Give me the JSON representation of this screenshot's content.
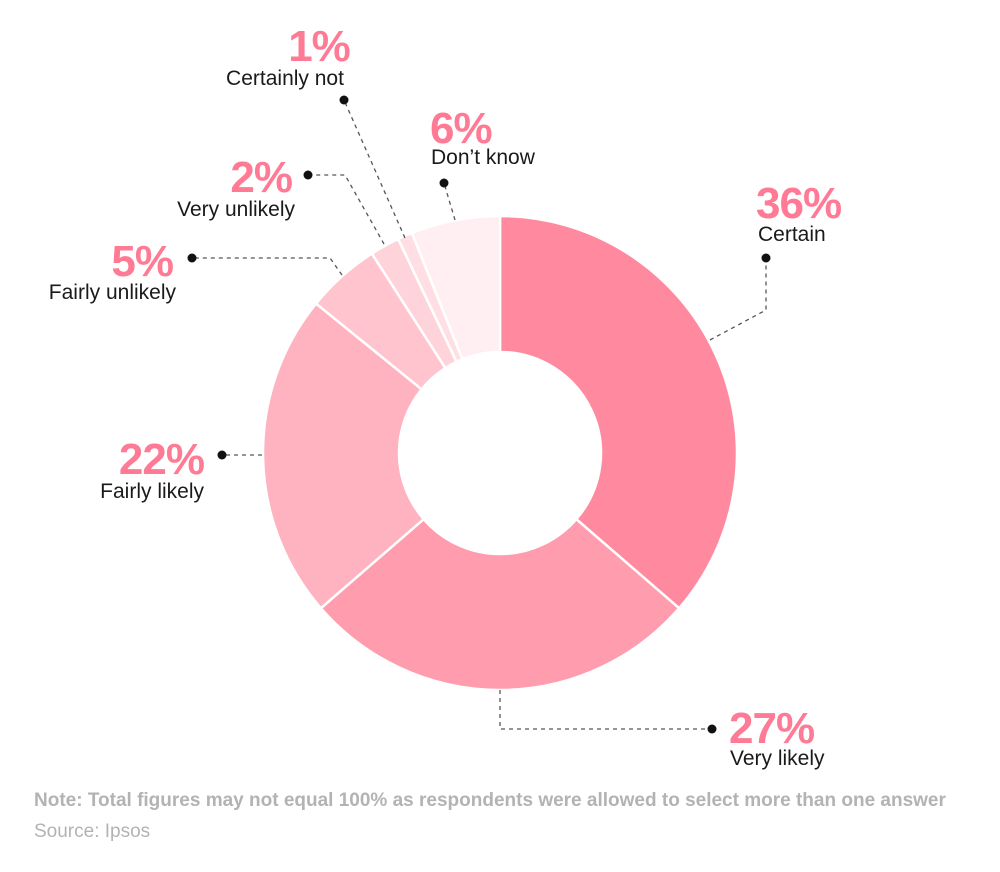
{
  "chart_data": {
    "type": "donut",
    "slices": [
      {
        "label": "Certain",
        "pct_text": "36%",
        "value": 36,
        "color": "#ff8a9f"
      },
      {
        "label": "Very likely",
        "pct_text": "27%",
        "value": 27,
        "color": "#ff9cad"
      },
      {
        "label": "Fairly likely",
        "pct_text": "22%",
        "value": 22,
        "color": "#ffb3c0"
      },
      {
        "label": "Fairly unlikely",
        "pct_text": "5%",
        "value": 5,
        "color": "#ffc4ce"
      },
      {
        "label": "Very unlikely",
        "pct_text": "2%",
        "value": 2,
        "color": "#ffd3da"
      },
      {
        "label": "Certainly not",
        "pct_text": "1%",
        "value": 1,
        "color": "#ffdfe4"
      },
      {
        "label": "Don’t know",
        "pct_text": "6%",
        "value": 6,
        "color": "#ffeff2"
      }
    ],
    "accent_color": "#ff7a94"
  },
  "footer": {
    "note": "Note: Total figures may not equal 100% as respondents were allowed to select more than one answer",
    "source": "Source: Ipsos"
  }
}
